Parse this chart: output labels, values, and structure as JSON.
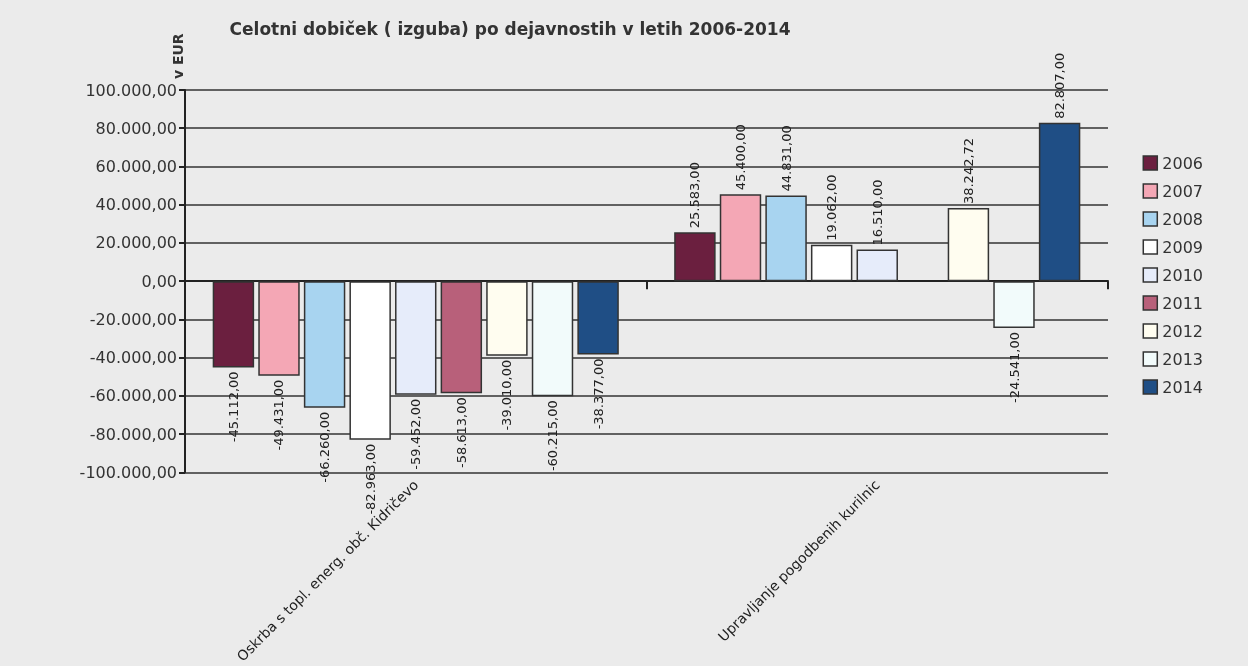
{
  "chart_data": {
    "type": "bar",
    "title": "Celotni dobiček ( izguba) po dejavnostih v letih 2006-2014",
    "ylabel": "v EUR",
    "categories": [
      "Oskrba s topl. energ. obč. Kidričevo",
      "Upravljanje pogodbenih kurilnic"
    ],
    "series": [
      {
        "name": "2006",
        "color": "#6b1f3f",
        "values": [
          -45112,
          25583
        ],
        "value_labels": [
          "-45.112,00",
          "25.583,00"
        ]
      },
      {
        "name": "2007",
        "color": "#f4a7b5",
        "values": [
          -49431,
          45400
        ],
        "value_labels": [
          "-49.431,00",
          "45.400,00"
        ]
      },
      {
        "name": "2008",
        "color": "#a8d4f0",
        "values": [
          -66260,
          44831
        ],
        "value_labels": [
          "-66.260,00",
          "44.831,00"
        ]
      },
      {
        "name": "2009",
        "color": "#ffffff",
        "values": [
          -82963,
          19062
        ],
        "value_labels": [
          "-82.963,00",
          "19.062,00"
        ]
      },
      {
        "name": "2010",
        "color": "#e6ecfa",
        "values": [
          -59452,
          16510
        ],
        "value_labels": [
          "-59.452,00",
          "16.510,00"
        ]
      },
      {
        "name": "2011",
        "color": "#b8607a",
        "values": [
          -58613,
          null
        ],
        "value_labels": [
          "-58.613,00",
          null
        ]
      },
      {
        "name": "2012",
        "color": "#fffdf0",
        "values": [
          -39010,
          38242.72
        ],
        "value_labels": [
          "-39.010,00",
          "38.242,72"
        ]
      },
      {
        "name": "2013",
        "color": "#f2fbfb",
        "values": [
          -60215,
          -24541
        ],
        "value_labels": [
          "-60.215,00",
          "-24.541,00"
        ]
      },
      {
        "name": "2014",
        "color": "#1f4e85",
        "values": [
          -38377,
          82807
        ],
        "value_labels": [
          "-38.377,00",
          "82.807,00"
        ]
      }
    ],
    "ylim": [
      -100000,
      100000
    ],
    "yticks": [
      {
        "value": -100000,
        "label": "-100.000,00"
      },
      {
        "value": -80000,
        "label": "-80.000,00"
      },
      {
        "value": -60000,
        "label": "-60.000,00"
      },
      {
        "value": -40000,
        "label": "-40.000,00"
      },
      {
        "value": -20000,
        "label": "-20.000,00"
      },
      {
        "value": 0,
        "label": "0,00"
      },
      {
        "value": 20000,
        "label": "20.000,00"
      },
      {
        "value": 40000,
        "label": "40.000,00"
      },
      {
        "value": 60000,
        "label": "60.000,00"
      },
      {
        "value": 80000,
        "label": "80.000,00"
      },
      {
        "value": 100000,
        "label": "100.000,00"
      }
    ],
    "grid": "y",
    "legend": "right"
  }
}
